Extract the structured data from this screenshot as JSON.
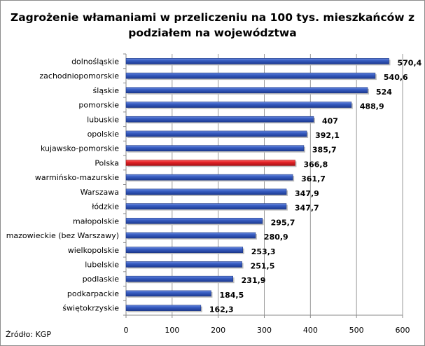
{
  "chart_data": {
    "type": "bar",
    "orientation": "horizontal",
    "title": "Zagrożenie włamaniami w przeliczeniu na 100 tys. mieszkańców z\npodziałem na województwa",
    "categories": [
      "dolnośląskie",
      "zachodniopomorskie",
      "śląskie",
      "pomorskie",
      "lubuskie",
      "opolskie",
      "kujawsko-pomorskie",
      "Polska",
      "warmińsko-mazurskie",
      "Warszawa",
      "łódzkie",
      "małopolskie",
      "mazowieckie (bez Warszawy)",
      "wielkopolskie",
      "lubelskie",
      "podlaskie",
      "podkarpackie",
      "świętokrzyskie"
    ],
    "values": [
      570.4,
      540.6,
      524,
      488.9,
      407,
      392.1,
      385.7,
      366.8,
      361.7,
      347.9,
      347.7,
      295.7,
      280.9,
      253.3,
      251.5,
      231.9,
      184.5,
      162.3
    ],
    "value_labels": [
      "570,4",
      "540,6",
      "524",
      "488,9",
      "407",
      "392,1",
      "385,7",
      "366,8",
      "361,7",
      "347,9",
      "347,7",
      "295,7",
      "280,9",
      "253,3",
      "251,5",
      "231,9",
      "184,5",
      "162,3"
    ],
    "xlim": [
      0,
      600
    ],
    "xticks": [
      0,
      100,
      200,
      300,
      400,
      500,
      600
    ],
    "grid": true,
    "legend": "none",
    "colors": {
      "bar": "#2b4fb0",
      "highlight": "#e8262a",
      "highlight_category": "Polska"
    }
  },
  "source": "Źródło: KGP"
}
